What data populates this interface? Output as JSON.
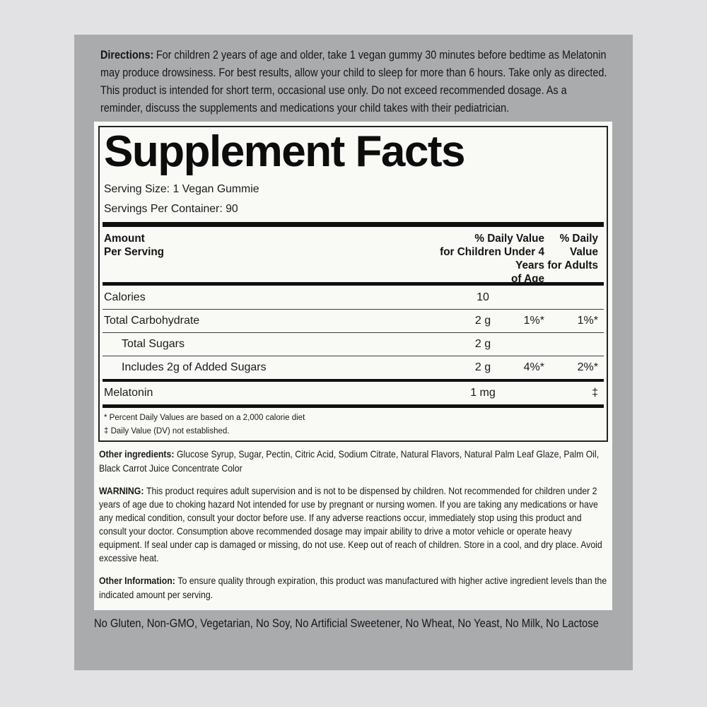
{
  "colors": {
    "page_background": "#e2e2e4",
    "panel_background": "#a9abac",
    "label_background": "#f9f9f6",
    "text": "#1a1a1a",
    "rule": "#101010"
  },
  "directions": {
    "label": "Directions:",
    "text": "For children 2 years of age and older, take 1 vegan gummy 30 minutes before bedtime as Melatonin may produce drowsiness. For best results, allow your child to sleep for more than 6 hours. Take only as directed. This product is intended for short term, occasional use only. Do not exceed recommended dosage. As a reminder, discuss the supplements and medications your child takes with their pediatrician."
  },
  "facts": {
    "title": "Supplement Facts",
    "serving_size": "Serving Size: 1 Vegan Gummie",
    "servings_per_container": "Servings Per Container: 90",
    "columns": {
      "amount": "Amount\nPer Serving",
      "children": "% Daily Value\nfor Children Under 4\nYears\nof Age",
      "adults": "% Daily\nValue\nfor Adults"
    },
    "rows": [
      {
        "name": "Calories",
        "amount": "10",
        "dv_children": "",
        "dv_adults": ""
      },
      {
        "name": "Total Carbohydrate",
        "amount": "2 g",
        "dv_children": "1%*",
        "dv_adults": "1%*"
      },
      {
        "name": "Total Sugars",
        "amount": "2 g",
        "dv_children": "",
        "dv_adults": ""
      },
      {
        "name": "Includes 2g of Added Sugars",
        "amount": "2 g",
        "dv_children": "4%*",
        "dv_adults": "2%*"
      },
      {
        "name": "Melatonin",
        "amount": "1 mg",
        "dv_children": "",
        "dv_adults": "‡"
      }
    ],
    "footnotes": [
      "* Percent Daily Values are based on a 2,000 calorie diet",
      "‡ Daily Value (DV) not established."
    ]
  },
  "other_ingredients": {
    "label": "Other ingredients:",
    "text": "Glucose Syrup, Sugar, Pectin, Citric Acid, Sodium Citrate, Natural Flavors, Natural Palm Leaf Glaze, Palm Oil, Black Carrot Juice Concentrate Color"
  },
  "warning": {
    "label": "WARNING:",
    "text": "This product requires adult supervision and is not to be dispensed by children. Not recommended for children under 2 years of age due to choking hazard Not intended for use by pregnant or nursing women. If you are taking any medications or have any medical condition, consult your doctor before use. If any adverse reactions occur, immediately stop using this product and consult your doctor. Consumption above recommended dosage may impair ability to drive a motor vehicle or operate heavy equipment. If seal under cap is damaged or missing, do not use. Keep out of reach of children. Store in a cool, and dry place. Avoid excessive heat."
  },
  "other_information": {
    "label": "Other Information:",
    "text": "To ensure quality through expiration, this product was manufactured with higher active ingredient levels than the indicated amount per serving."
  },
  "claims": {
    "text": "No Gluten, Non-GMO, Vegetarian, No Soy, No Artificial Sweetener, No Wheat, No Yeast, No Milk, No Lactose"
  }
}
